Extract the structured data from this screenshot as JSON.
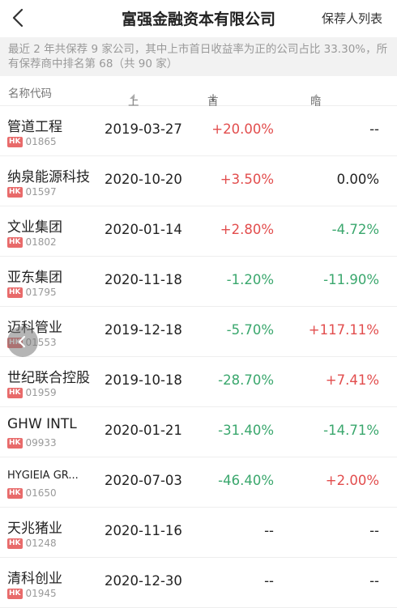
{
  "header": {
    "title": "富强金融资本有限公司",
    "link_label": "保荐人列表",
    "back_icon": "chevron-left-icon"
  },
  "summary": {
    "text": "最近 2 年共保荐 9 家公司，其中上市首日收益率为正的公司占比 33.30%，所有保荐商中排名第 68（共 90 家）"
  },
  "columns": {
    "name": "名称代码",
    "date": "上市日期",
    "first_day": "首日涨跌幅",
    "dark": "暗盘涨跌幅"
  },
  "colors": {
    "up": "#e24d4d",
    "down": "#3aa76d",
    "badge": "#e86a6a"
  },
  "rows": [
    {
      "name": "管道工程",
      "market": "HK",
      "code": "01865",
      "date": "2019-03-27",
      "first": "+20.00%",
      "first_dir": "up",
      "dark": "--",
      "dark_dir": "flat"
    },
    {
      "name": "纳泉能源科技",
      "market": "HK",
      "code": "01597",
      "date": "2020-10-20",
      "first": "+3.50%",
      "first_dir": "up",
      "dark": "0.00%",
      "dark_dir": "flat"
    },
    {
      "name": "文业集团",
      "market": "HK",
      "code": "01802",
      "date": "2020-01-14",
      "first": "+2.80%",
      "first_dir": "up",
      "dark": "-4.72%",
      "dark_dir": "down"
    },
    {
      "name": "亚东集团",
      "market": "HK",
      "code": "01795",
      "date": "2020-11-18",
      "first": "-1.20%",
      "first_dir": "down",
      "dark": "-11.90%",
      "dark_dir": "down"
    },
    {
      "name": "迈科管业",
      "market": "HK",
      "code": "01553",
      "date": "2019-12-18",
      "first": "-5.70%",
      "first_dir": "down",
      "dark": "+117.11%",
      "dark_dir": "up"
    },
    {
      "name": "世纪联合控股",
      "market": "HK",
      "code": "01959",
      "date": "2019-10-18",
      "first": "-28.70%",
      "first_dir": "down",
      "dark": "+7.41%",
      "dark_dir": "up"
    },
    {
      "name": "GHW INTL",
      "market": "HK",
      "code": "09933",
      "date": "2020-01-21",
      "first": "-31.40%",
      "first_dir": "down",
      "dark": "-14.71%",
      "dark_dir": "down"
    },
    {
      "name": "HYGIEIA GR...",
      "market": "HK",
      "code": "01650",
      "date": "2020-07-03",
      "first": "-46.40%",
      "first_dir": "down",
      "dark": "+2.00%",
      "dark_dir": "up",
      "small": true
    },
    {
      "name": "天兆猪业",
      "market": "HK",
      "code": "01248",
      "date": "2020-11-16",
      "first": "--",
      "first_dir": "flat",
      "dark": "--",
      "dark_dir": "flat"
    },
    {
      "name": "清科创业",
      "market": "HK",
      "code": "01945",
      "date": "2020-12-30",
      "first": "--",
      "first_dir": "flat",
      "dark": "--",
      "dark_dir": "flat"
    }
  ]
}
